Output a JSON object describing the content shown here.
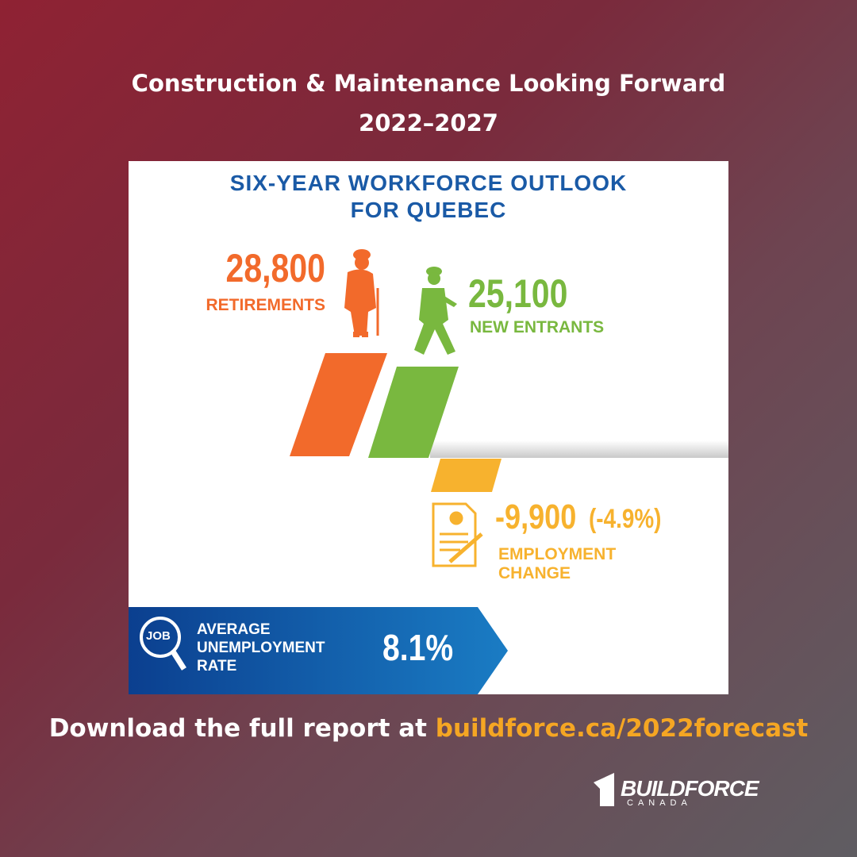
{
  "header": {
    "title": "Construction & Maintenance Looking Forward",
    "years": "2022–2027"
  },
  "card": {
    "title": [
      "SIX-YEAR WORKFORCE OUTLOOK",
      "FOR QUEBEC"
    ],
    "retirements": {
      "value": "28,800",
      "label": "RETIREMENTS"
    },
    "new_entrants": {
      "value": "25,100",
      "label": "NEW ENTRANTS"
    },
    "employment_change": {
      "value": "-9,900",
      "percent": "(-4.9%)",
      "label": [
        "EMPLOYMENT",
        "CHANGE"
      ]
    },
    "unemployment": {
      "icon": "JOB",
      "label": [
        "AVERAGE",
        "UNEMPLOYMENT",
        "RATE"
      ],
      "value": "8.1%"
    }
  },
  "footer": {
    "text": "Download the full report at",
    "link": "buildforce.ca/2022forecast"
  },
  "logo": {
    "name": "BUILDFORCE",
    "sub": "CANADA"
  }
}
